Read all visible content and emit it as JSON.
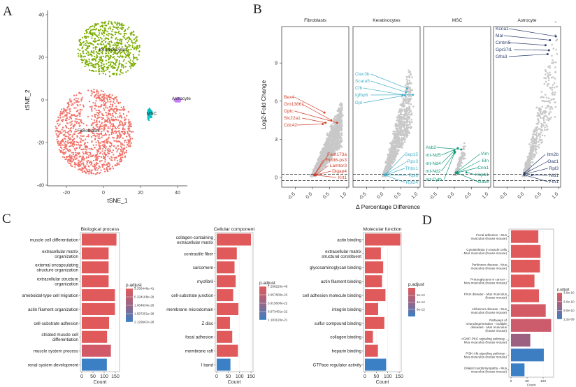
{
  "panels": {
    "a": "A",
    "b": "B",
    "c": "C",
    "d": "D"
  },
  "chart_data": [
    {
      "type": "scatter",
      "xlabel": "tSNE_1",
      "ylabel": "tSNE_2",
      "xlim": [
        -28,
        45
      ],
      "ylim": [
        -41,
        42
      ],
      "xticks": [
        -20,
        0,
        20,
        40
      ],
      "yticks": [
        -40,
        -20,
        0,
        20,
        40
      ],
      "grid": false,
      "clusters": [
        {
          "name": "Fibroblasts",
          "color": "#f07067",
          "center": [
            -5,
            -15
          ],
          "spread": [
            21,
            20
          ]
        },
        {
          "name": "Keratinocytes",
          "color": "#7cae00",
          "center": [
            3,
            24
          ],
          "spread": [
            17,
            13
          ]
        },
        {
          "name": "MSC",
          "color": "#00bfc4",
          "center": [
            25,
            -7
          ],
          "spread": [
            1.3,
            3.3
          ]
        },
        {
          "name": "Astrocyte",
          "color": "#c77cff",
          "center": [
            40,
            0
          ],
          "spread": [
            2,
            1.1
          ]
        }
      ]
    },
    {
      "type": "scatter",
      "xlabel": "Δ Percentage Difference",
      "ylabel": "Log2-Fold Change",
      "xticks": [
        "-0.5",
        "0.0",
        "0.5",
        "1.0"
      ],
      "yticks": [
        "0",
        "3",
        "6",
        "9"
      ],
      "xlim": [
        -0.9,
        1.1
      ],
      "ylim": [
        -0.8,
        11.9
      ],
      "thresholds": [
        0.25,
        -0.25
      ],
      "point_color": "#c8c8c8",
      "facets": [
        {
          "name": "Fibroblasts",
          "color": "#d1402c",
          "top": [
            {
              "gene": "Bex4",
              "x": 0.35,
              "y": 5.1
            },
            {
              "gene": "Gm13861",
              "x": 0.55,
              "y": 4.5
            },
            {
              "gene": "Optc",
              "x": 0.72,
              "y": 4.3
            },
            {
              "gene": "Slc22a1",
              "x": 0.38,
              "y": 4.3
            },
            {
              "gene": "Cdc42",
              "x": 0.3,
              "y": 4.2
            }
          ],
          "bottom": [
            {
              "gene": "Fam173a",
              "x": 0.08,
              "y": 0.25
            },
            {
              "gene": "Rpl36-ps3",
              "x": 0.06,
              "y": 0.22
            },
            {
              "gene": "Lamtor3",
              "x": 0.1,
              "y": 0.2
            },
            {
              "gene": "Dlgap4",
              "x": 0.07,
              "y": 0.18
            },
            {
              "gene": "Krt1",
              "x": 0.05,
              "y": 0.2
            }
          ]
        },
        {
          "name": "Keratinocytes",
          "color": "#45b2c9",
          "top": [
            {
              "gene": "Clec3b",
              "x": 0.68,
              "y": 7.0
            },
            {
              "gene": "Scara5",
              "x": 0.65,
              "y": 6.7
            },
            {
              "gene": "Cfb",
              "x": 0.55,
              "y": 6.5
            },
            {
              "gene": "Igfbp6",
              "x": 0.85,
              "y": 6.5
            },
            {
              "gene": "Dpt",
              "x": 0.62,
              "y": 6.45
            }
          ],
          "bottom": [
            {
              "gene": "Sep15",
              "x": 0.05,
              "y": 0.25
            },
            {
              "gene": "Rps3",
              "x": 0.04,
              "y": 0.22
            },
            {
              "gene": "Thbs1",
              "x": 0.06,
              "y": 0.2
            },
            {
              "gene": "Rpl8",
              "x": 0.03,
              "y": 0.2
            },
            {
              "gene": "Rpl24",
              "x": 0.04,
              "y": 0.18
            }
          ]
        },
        {
          "name": "MSC",
          "color": "#12977b",
          "left": [
            {
              "gene": "Asb2",
              "x": 0.2,
              "y": 2.2
            },
            {
              "gene": "mt-Nd5",
              "x": 0.1,
              "y": 2.3
            },
            {
              "gene": "mt-Nd4",
              "x": 0.0,
              "y": 2.1
            },
            {
              "gene": "mt-Nd2",
              "x": 0.02,
              "y": 2.0
            },
            {
              "gene": "mt-Cytb",
              "x": 0.0,
              "y": 1.9
            }
          ],
          "right": [
            {
              "gene": "Vim",
              "x": 0.05,
              "y": 0.4
            },
            {
              "gene": "Eln",
              "x": 0.1,
              "y": 0.4
            },
            {
              "gene": "Cnn1",
              "x": 0.05,
              "y": 0.35
            },
            {
              "gene": "Hspb1",
              "x": 0.35,
              "y": 0.4
            },
            {
              "gene": "Gas6",
              "x": 0.08,
              "y": 0.35
            }
          ]
        },
        {
          "name": "Astrocyte",
          "color": "#2b3f6d",
          "top": [
            {
              "gene": "Kcna1",
              "x": 0.92,
              "y": 11.1
            },
            {
              "gene": "Mal",
              "x": 0.75,
              "y": 10.8
            },
            {
              "gene": "Cmtm5",
              "x": 0.62,
              "y": 10.4
            },
            {
              "gene": "Gpr37l1",
              "x": 0.72,
              "y": 10.0
            },
            {
              "gene": "Gfra3",
              "x": 0.68,
              "y": 9.7
            }
          ],
          "bottom": [
            {
              "gene": "Itm2b",
              "x": 0.0,
              "y": 0.35
            },
            {
              "gene": "Oaz1",
              "x": 0.0,
              "y": 0.3
            },
            {
              "gene": "Rpl3",
              "x": 0.0,
              "y": 0.25
            },
            {
              "gene": "Nid1",
              "x": 0.22,
              "y": 0.2
            },
            {
              "gene": "Fth1",
              "x": 0.0,
              "y": 0.2
            }
          ]
        }
      ]
    },
    {
      "type": "bar",
      "orientation": "horizontal",
      "title": "Biological process",
      "xlabel": "Count",
      "xlim": [
        0,
        160
      ],
      "xticks": [
        "0",
        "50",
        "100",
        "150"
      ],
      "legend": {
        "title": "p.adjust",
        "labels": [
          "3.336446e-41",
          "5.324168e-29",
          "1.064834e-28",
          "1.597251e-28",
          "2.129667e-28"
        ]
      },
      "bars": [
        {
          "label": [
            "muscle cell differentiation"
          ],
          "value": 155,
          "color": "#e05a5c"
        },
        {
          "label": [
            "extracellular matrix",
            "organization"
          ],
          "value": 120,
          "color": "#e05a5c"
        },
        {
          "label": [
            "external encapsulating",
            "structure organization"
          ],
          "value": 120,
          "color": "#e05a5c"
        },
        {
          "label": [
            "extracellular structure",
            "organization"
          ],
          "value": 120,
          "color": "#e05a5c"
        },
        {
          "label": [
            "ameboidal-type cell migration"
          ],
          "value": 148,
          "color": "#e05a5c"
        },
        {
          "label": [
            "actin filament organization"
          ],
          "value": 148,
          "color": "#e05a5c"
        },
        {
          "label": [
            "cell-substrate adhesion"
          ],
          "value": 122,
          "color": "#e05a5c"
        },
        {
          "label": [
            "striated muscle cell",
            "differentiation"
          ],
          "value": 113,
          "color": "#e05a5c"
        },
        {
          "label": [
            "muscle system process"
          ],
          "value": 130,
          "color": "#d25a68"
        },
        {
          "label": [
            "renal system development"
          ],
          "value": 112,
          "color": "#3b7fc4"
        }
      ]
    },
    {
      "type": "bar",
      "orientation": "horizontal",
      "title": "Cellular component",
      "xlabel": "Count",
      "xlim": [
        0,
        160
      ],
      "xticks": [
        "0",
        "50",
        "100",
        "150"
      ],
      "legend": {
        "title": "p.adjust",
        "labels": [
          "7.298220e-46",
          "2.957800e-22",
          "5.915600e-22",
          "8.873401e-22",
          "1.183120e-21"
        ]
      },
      "bars": [
        {
          "label": [
            "collagen-containing",
            "extracellular matrix"
          ],
          "value": 150,
          "color": "#e05a5c"
        },
        {
          "label": [
            "contractile fiber"
          ],
          "value": 88,
          "color": "#e05a5c"
        },
        {
          "label": [
            "sarcomere"
          ],
          "value": 78,
          "color": "#e05a5c"
        },
        {
          "label": [
            "myofibril"
          ],
          "value": 83,
          "color": "#e05a5c"
        },
        {
          "label": [
            "cell-substrate junction"
          ],
          "value": 72,
          "color": "#e05a5c"
        },
        {
          "label": [
            "membrane microdomain"
          ],
          "value": 95,
          "color": "#e05a5c"
        },
        {
          "label": [
            "Z disc"
          ],
          "value": 58,
          "color": "#e05a5c"
        },
        {
          "label": [
            "focal adhesion"
          ],
          "value": 68,
          "color": "#e05a5c"
        },
        {
          "label": [
            "membrane raft"
          ],
          "value": 93,
          "color": "#e05a5c"
        },
        {
          "label": [
            "I band"
          ],
          "value": 60,
          "color": "#3b7fc4"
        }
      ]
    },
    {
      "type": "bar",
      "orientation": "horizontal",
      "title": "Molecular function",
      "xlabel": "Count",
      "xlim": [
        0,
        160
      ],
      "xticks": [
        "0",
        "50",
        "100",
        "150"
      ],
      "legend": {
        "title": "p.adjust",
        "labels": [
          "2e-12",
          "4e-12",
          "6e-12"
        ]
      },
      "bars": [
        {
          "label": [
            "actin binding"
          ],
          "value": 155,
          "color": "#e05a5c"
        },
        {
          "label": [
            "extracellular matrix",
            "structural constituent"
          ],
          "value": 70,
          "color": "#e05a5c"
        },
        {
          "label": [
            "glycosaminoglycan binding"
          ],
          "value": 80,
          "color": "#e05a5c"
        },
        {
          "label": [
            "actin filament binding"
          ],
          "value": 75,
          "color": "#e05a5c"
        },
        {
          "label": [
            "cell adhesion molecule binding"
          ],
          "value": 90,
          "color": "#e05a5c"
        },
        {
          "label": [
            "integrin binding"
          ],
          "value": 58,
          "color": "#e05a5c"
        },
        {
          "label": [
            "sulfur compound binding"
          ],
          "value": 85,
          "color": "#e05a5c"
        },
        {
          "label": [
            "collagen binding"
          ],
          "value": 35,
          "color": "#e05a5c"
        },
        {
          "label": [
            "heparin binding"
          ],
          "value": 57,
          "color": "#e05a5c"
        },
        {
          "label": [
            "GTPase regulator activity"
          ],
          "value": 93,
          "color": "#3b7fc4"
        }
      ]
    },
    {
      "type": "bar",
      "orientation": "horizontal",
      "title": "",
      "xlabel": "Count",
      "xlim": [
        0,
        135
      ],
      "xticks": [
        "0",
        "50",
        "100"
      ],
      "legend": {
        "title": "p.adjust",
        "labels": [
          "3.0e-10",
          "6.0e-10",
          "9.0e-10",
          "1.2e-09"
        ]
      },
      "bars": [
        {
          "label": [
            "Focal adhesion - Mus",
            "musculus (house mouse)"
          ],
          "value": 85,
          "color": "#e05a5c"
        },
        {
          "label": [
            "Cytoskeleton in muscle cells",
            "- Mus musculus (house mouse)"
          ],
          "value": 92,
          "color": "#e05a5c"
        },
        {
          "label": [
            "Parkinson disease - Mus",
            "musculus (house mouse)"
          ],
          "value": 90,
          "color": "#e05a5c"
        },
        {
          "label": [
            "Proteoglycans in cancer -",
            "Mus musculus (house mouse)"
          ],
          "value": 73,
          "color": "#e05a5c"
        },
        {
          "label": [
            "Prion disease - Mus musculus",
            "(house mouse)"
          ],
          "value": 87,
          "color": "#e05a5c"
        },
        {
          "label": [
            "Alzheimer disease - Mus",
            "musculus (house mouse)"
          ],
          "value": 108,
          "color": "#d45a66"
        },
        {
          "label": [
            "Pathways of",
            "neurodegeneration - multiple",
            "diseases - Mus musculus",
            "(house mouse)"
          ],
          "value": 125,
          "color": "#cc5b6c"
        },
        {
          "label": [
            "cGMP-PKG signaling pathway -",
            "Mus musculus (house mouse)"
          ],
          "value": 60,
          "color": "#9c6080"
        },
        {
          "label": [
            "PI3K-Akt signaling pathway -",
            "Mus musculus (house mouse)"
          ],
          "value": 102,
          "color": "#3d7dc2"
        },
        {
          "label": [
            "Dilated cardiomyopathy - Mus",
            "musculus (house mouse)"
          ],
          "value": 42,
          "color": "#3a80c6"
        }
      ]
    }
  ]
}
